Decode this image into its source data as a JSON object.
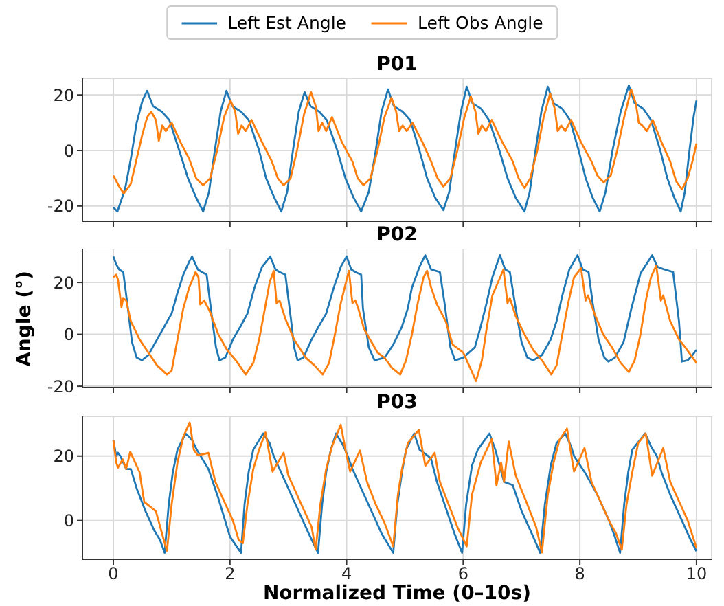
{
  "chart_data": [
    {
      "type": "line",
      "title": "P01",
      "legend": "top",
      "grid": true,
      "tick_labels": "y",
      "xlim": [
        -0.53,
        10.26
      ],
      "xticks": [
        0,
        2,
        4,
        6,
        8,
        10
      ],
      "ylim": [
        -25.5,
        26
      ],
      "yticks": [
        -20,
        0,
        20
      ],
      "series": [
        {
          "name": "Left Est Angle",
          "color": "#1f77b4",
          "x": [
            0,
            0.07,
            0.2,
            0.3,
            0.4,
            0.5,
            0.58,
            0.68,
            0.83,
            0.96,
            1.13,
            1.28,
            1.42,
            1.54,
            1.64,
            1.74,
            1.84,
            1.94,
            2.04,
            2.19,
            2.32,
            2.5,
            2.62,
            2.76,
            2.88,
            2.98,
            3.08,
            3.18,
            3.28,
            3.38,
            3.53,
            3.66,
            3.84,
            3.98,
            4.12,
            4.25,
            4.38,
            4.5,
            4.6,
            4.71,
            4.81,
            4.96,
            5.09,
            5.25,
            5.38,
            5.52,
            5.66,
            5.76,
            5.86,
            5.96,
            6.06,
            6.16,
            6.31,
            6.44,
            6.62,
            6.76,
            6.9,
            7.05,
            7.14,
            7.24,
            7.34,
            7.45,
            7.55,
            7.7,
            7.83,
            7.98,
            8.1,
            8.22,
            8.34,
            8.44,
            8.56,
            8.7,
            8.84,
            8.94,
            9.09,
            9.22,
            9.38,
            9.5,
            9.62,
            9.73,
            9.8,
            9.88,
            9.95,
            10
          ],
          "values": [
            -20.5,
            -22,
            -14,
            -3,
            10,
            18,
            21.5,
            16,
            14,
            11,
            0,
            -10,
            -17,
            -22,
            -15,
            0,
            14,
            21.5,
            16,
            14,
            11,
            0,
            -10,
            -17,
            -22,
            -15,
            0,
            14,
            21,
            16,
            14,
            11,
            0,
            -10,
            -17,
            -22,
            -15,
            0,
            14,
            22,
            16,
            14,
            11,
            0,
            -10,
            -17,
            -21.5,
            -15,
            0,
            14,
            23,
            17,
            15,
            11,
            0,
            -10,
            -17,
            -22,
            -15,
            0,
            14,
            23,
            17,
            15,
            11,
            0,
            -10,
            -17,
            -22,
            -15,
            0,
            14,
            23.5,
            17,
            15,
            11,
            0,
            -10,
            -17,
            -22,
            -15,
            0,
            12,
            18
          ]
        },
        {
          "name": "Left Obs Angle",
          "color": "#ff7f0e",
          "x": [
            0,
            0.1,
            0.18,
            0.3,
            0.4,
            0.5,
            0.58,
            0.65,
            0.73,
            0.78,
            0.84,
            0.9,
            1.0,
            1.15,
            1.3,
            1.42,
            1.54,
            1.66,
            1.78,
            1.9,
            2.01,
            2.09,
            2.14,
            2.2,
            2.27,
            2.37,
            2.55,
            2.72,
            2.82,
            2.92,
            3.04,
            3.15,
            3.27,
            3.39,
            3.47,
            3.52,
            3.58,
            3.65,
            3.75,
            3.92,
            4.1,
            4.19,
            4.29,
            4.41,
            4.53,
            4.65,
            4.77,
            4.85,
            4.9,
            4.96,
            5.03,
            5.13,
            5.3,
            5.45,
            5.56,
            5.66,
            5.78,
            5.9,
            6.02,
            6.13,
            6.21,
            6.26,
            6.32,
            6.39,
            6.49,
            6.67,
            6.85,
            6.95,
            7.05,
            7.15,
            7.27,
            7.38,
            7.49,
            7.57,
            7.62,
            7.68,
            7.75,
            7.85,
            8.02,
            8.2,
            8.3,
            8.41,
            8.53,
            8.64,
            8.76,
            8.88,
            8.96,
            9.01,
            9.07,
            9.15,
            9.25,
            9.4,
            9.55,
            9.65,
            9.75,
            9.85,
            9.93,
            10
          ],
          "values": [
            -9,
            -13,
            -15.5,
            -12,
            -3,
            6,
            12,
            14,
            11,
            3.5,
            9,
            7,
            10,
            3,
            -3,
            -10,
            -12.5,
            -10,
            0,
            12,
            18,
            14,
            6,
            9,
            7,
            11,
            3,
            -4,
            -10,
            -12.5,
            -10,
            0,
            13,
            21,
            16,
            7,
            10,
            7,
            12,
            3,
            -4,
            -10,
            -12.5,
            -10,
            0,
            12,
            19,
            14,
            7,
            9,
            7,
            10,
            3,
            -4,
            -10,
            -13,
            -10,
            0,
            12,
            19.5,
            14,
            6,
            9,
            7,
            11,
            3,
            -4,
            -10,
            -13.5,
            -10,
            0,
            12,
            20.5,
            15,
            7,
            9,
            7,
            11,
            3,
            -4,
            -9,
            -11.5,
            -9,
            0,
            12,
            22,
            17,
            10,
            9,
            7,
            11,
            3,
            -4,
            -11,
            -14,
            -10,
            -4,
            2.5
          ]
        }
      ]
    },
    {
      "type": "line",
      "title": "P02",
      "ylabel": "Angle (°)",
      "grid": true,
      "tick_labels": "y",
      "xlim": [
        -0.53,
        10.26
      ],
      "xticks": [
        0,
        2,
        4,
        6,
        8,
        10
      ],
      "ylim": [
        -20.5,
        33
      ],
      "yticks": [
        -20,
        0,
        20
      ],
      "series": [
        {
          "color": "#1f77b4",
          "x": [
            0,
            0.05,
            0.1,
            0.17,
            0.25,
            0.32,
            0.4,
            0.49,
            0.6,
            0.75,
            0.85,
            1.0,
            1.1,
            1.2,
            1.3,
            1.35,
            1.45,
            1.52,
            1.6,
            1.7,
            1.76,
            1.82,
            1.92,
            2.05,
            2.18,
            2.3,
            2.42,
            2.55,
            2.69,
            2.78,
            2.85,
            2.95,
            3.05,
            3.1,
            3.16,
            3.26,
            3.4,
            3.52,
            3.65,
            3.78,
            3.9,
            4.0,
            4.08,
            4.15,
            4.25,
            4.28,
            4.38,
            4.48,
            4.65,
            4.8,
            4.95,
            5.05,
            5.12,
            5.25,
            5.35,
            5.45,
            5.6,
            5.68,
            5.78,
            5.86,
            6.0,
            6.2,
            6.3,
            6.4,
            6.5,
            6.63,
            6.72,
            6.8,
            6.9,
            7.0,
            7.1,
            7.2,
            7.35,
            7.5,
            7.6,
            7.7,
            7.82,
            7.96,
            8.05,
            8.15,
            8.22,
            8.32,
            8.42,
            8.49,
            8.6,
            8.75,
            8.88,
            9.04,
            9.24,
            9.33,
            9.45,
            9.6,
            9.7,
            9.75,
            9.85,
            9.93,
            10
          ],
          "values": [
            30,
            27,
            25,
            24,
            10,
            -3,
            -9,
            -10,
            -8,
            -2,
            2,
            8,
            16,
            23,
            28,
            30,
            25,
            24,
            23,
            5,
            -5,
            -10,
            -9,
            -2,
            3,
            8,
            18,
            26,
            30,
            25,
            24,
            23,
            5,
            -5,
            -10,
            -9,
            -2,
            3,
            8,
            18,
            26,
            30,
            25,
            24,
            23,
            10,
            -5,
            -10,
            -9,
            -4,
            3,
            10,
            18,
            26,
            30.5,
            25,
            24,
            12,
            -5,
            -10,
            -9,
            -5,
            3,
            12,
            22,
            30.5,
            25,
            24,
            10,
            -3,
            -9,
            -10,
            -8,
            -2,
            5,
            15,
            25,
            30.5,
            25,
            24,
            12,
            -2,
            -9,
            -10.5,
            -9,
            -3,
            9.6,
            23.5,
            30.5,
            26,
            25,
            24,
            5,
            -10.5,
            -10,
            -8,
            -6
          ]
        },
        {
          "color": "#ff7f0e",
          "x": [
            0,
            0.05,
            0.08,
            0.14,
            0.17,
            0.22,
            0.3,
            0.45,
            0.6,
            0.75,
            0.92,
            1.0,
            1.1,
            1.2,
            1.3,
            1.41,
            1.46,
            1.49,
            1.56,
            1.65,
            1.8,
            1.95,
            2.1,
            2.27,
            2.4,
            2.5,
            2.6,
            2.68,
            2.75,
            2.8,
            2.85,
            2.95,
            3.1,
            3.3,
            3.45,
            3.59,
            3.7,
            3.8,
            3.9,
            4.0,
            4.04,
            4.1,
            4.15,
            4.2,
            4.3,
            4.53,
            4.65,
            4.78,
            4.92,
            5.02,
            5.12,
            5.22,
            5.32,
            5.38,
            5.45,
            5.55,
            5.7,
            5.82,
            6.0,
            6.22,
            6.32,
            6.4,
            6.5,
            6.69,
            6.76,
            6.8,
            6.9,
            7.05,
            7.2,
            7.35,
            7.51,
            7.6,
            7.7,
            7.8,
            7.9,
            8.02,
            8.1,
            8.14,
            8.25,
            8.4,
            8.55,
            8.7,
            8.84,
            8.94,
            9.04,
            9.14,
            9.22,
            9.31,
            9.39,
            9.43,
            9.55,
            9.7,
            9.82,
            10
          ],
          "values": [
            22,
            23,
            21,
            10.5,
            14,
            13,
            5,
            -2,
            -7,
            -12,
            -15.5,
            -14,
            -2,
            10,
            18,
            24,
            22,
            11.5,
            13,
            9,
            0,
            -6,
            -10,
            -15.5,
            -11,
            -2,
            10,
            20,
            24.5,
            12,
            13,
            6,
            -2,
            -9,
            -12,
            -15.5,
            -11,
            0,
            12,
            21,
            24.5,
            12,
            13,
            10,
            2,
            -7,
            -9,
            -13,
            -15.5,
            -10,
            0,
            12,
            22,
            24.5,
            18,
            11.5,
            5,
            -4,
            -7,
            -18,
            -10,
            2,
            15,
            25,
            12,
            14,
            7,
            0,
            -6,
            -10,
            -15.5,
            -12,
            0,
            12,
            22,
            25.5,
            13,
            15,
            8,
            0,
            -5,
            -11,
            -14.5,
            -10,
            0,
            14,
            22,
            26.5,
            13,
            15,
            5,
            -2,
            -5.4,
            -11
          ]
        }
      ]
    },
    {
      "type": "line",
      "title": "P03",
      "xlabel": "Normalized Time (0–10s)",
      "grid": true,
      "xlim": [
        -0.53,
        10.26
      ],
      "xticks": [
        0,
        2,
        4,
        6,
        8,
        10
      ],
      "ylim": [
        -12,
        32.3
      ],
      "yticks": [
        0,
        20
      ],
      "series": [
        {
          "color": "#1f77b4",
          "x": [
            0,
            0.05,
            0.08,
            0.12,
            0.22,
            0.3,
            0.4,
            0.55,
            0.7,
            0.8,
            0.88,
            0.95,
            1.02,
            1.1,
            1.24,
            1.35,
            1.43,
            1.63,
            1.8,
            2.0,
            2.19,
            2.25,
            2.32,
            2.4,
            2.57,
            2.68,
            2.75,
            2.85,
            3.0,
            3.2,
            3.35,
            3.51,
            3.58,
            3.65,
            3.73,
            3.82,
            3.95,
            4.02,
            4.1,
            4.25,
            4.45,
            4.6,
            4.8,
            4.87,
            4.95,
            5.02,
            5.16,
            5.25,
            5.4,
            5.45,
            5.55,
            5.7,
            5.85,
            5.98,
            6.05,
            6.15,
            6.25,
            6.45,
            6.55,
            6.7,
            6.85,
            7.0,
            7.2,
            7.32,
            7.4,
            7.5,
            7.6,
            7.75,
            7.85,
            7.9,
            8.1,
            8.3,
            8.5,
            8.6,
            8.69,
            8.76,
            8.83,
            8.9,
            9.12,
            9.22,
            9.32,
            9.4,
            9.55,
            9.75,
            9.9,
            10
          ],
          "values": [
            25,
            20,
            21,
            20,
            16,
            16,
            10,
            3,
            -3,
            -6,
            -10,
            5,
            15,
            22,
            27,
            25,
            22,
            16,
            7,
            -5,
            -10,
            5,
            15,
            22,
            27,
            24,
            20,
            16,
            10,
            2,
            -4,
            -10,
            5,
            15,
            22,
            27,
            23,
            20,
            16,
            10,
            2,
            -4,
            -10,
            5,
            15,
            22,
            27,
            22,
            20,
            19,
            12,
            4,
            -4,
            -10,
            5,
            17,
            22,
            27,
            22,
            12,
            11,
            3,
            -5,
            -10,
            5,
            17,
            24,
            27,
            23,
            20,
            14.5,
            8,
            0,
            -5,
            -10,
            5,
            15,
            22,
            27,
            23,
            20,
            15,
            8,
            0,
            -6,
            -9.5
          ]
        },
        {
          "color": "#ff7f0e",
          "x": [
            0,
            0.05,
            0.08,
            0.16,
            0.22,
            0.29,
            0.45,
            0.53,
            0.73,
            0.85,
            0.92,
            1.0,
            1.1,
            1.2,
            1.31,
            1.38,
            1.45,
            1.63,
            1.75,
            1.9,
            2.05,
            2.15,
            2.22,
            2.3,
            2.4,
            2.5,
            2.61,
            2.73,
            2.92,
            3.0,
            3.2,
            3.4,
            3.47,
            3.55,
            3.65,
            3.75,
            3.9,
            3.98,
            4.06,
            4.23,
            4.35,
            4.5,
            4.65,
            4.8,
            4.88,
            4.95,
            5.05,
            5.24,
            5.35,
            5.51,
            5.6,
            5.75,
            5.9,
            6.06,
            6.15,
            6.3,
            6.49,
            6.57,
            6.65,
            6.7,
            6.78,
            6.9,
            7.1,
            7.25,
            7.35,
            7.45,
            7.55,
            7.65,
            7.78,
            7.9,
            8.08,
            8.2,
            8.35,
            8.5,
            8.62,
            8.72,
            8.8,
            8.9,
            9.0,
            9.13,
            9.24,
            9.43,
            9.55,
            9.7,
            9.85,
            10
          ],
          "values": [
            25,
            18,
            16.4,
            19,
            16,
            21.3,
            15,
            5.8,
            2.9,
            -5,
            -9.4,
            5,
            18,
            26,
            30.4,
            22,
            20.2,
            21,
            12,
            6,
            0,
            -6,
            -7,
            5,
            16,
            22,
            27.3,
            15.2,
            21,
            14,
            6,
            -2,
            -9,
            5,
            16,
            23,
            29.7,
            22,
            15.2,
            21.7,
            12,
            5,
            -0.7,
            -8,
            8,
            16,
            24,
            28.1,
            17,
            21,
            12,
            5,
            -2,
            -8,
            8,
            18,
            25.3,
            10.9,
            18,
            12,
            24.5,
            14,
            5,
            -2,
            -9.9,
            8,
            18,
            25,
            28.5,
            15.2,
            22.5,
            12,
            6,
            0,
            -4,
            -9,
            5,
            15,
            24,
            27,
            13.9,
            22.5,
            12,
            6,
            0,
            -8.5
          ]
        }
      ]
    }
  ]
}
